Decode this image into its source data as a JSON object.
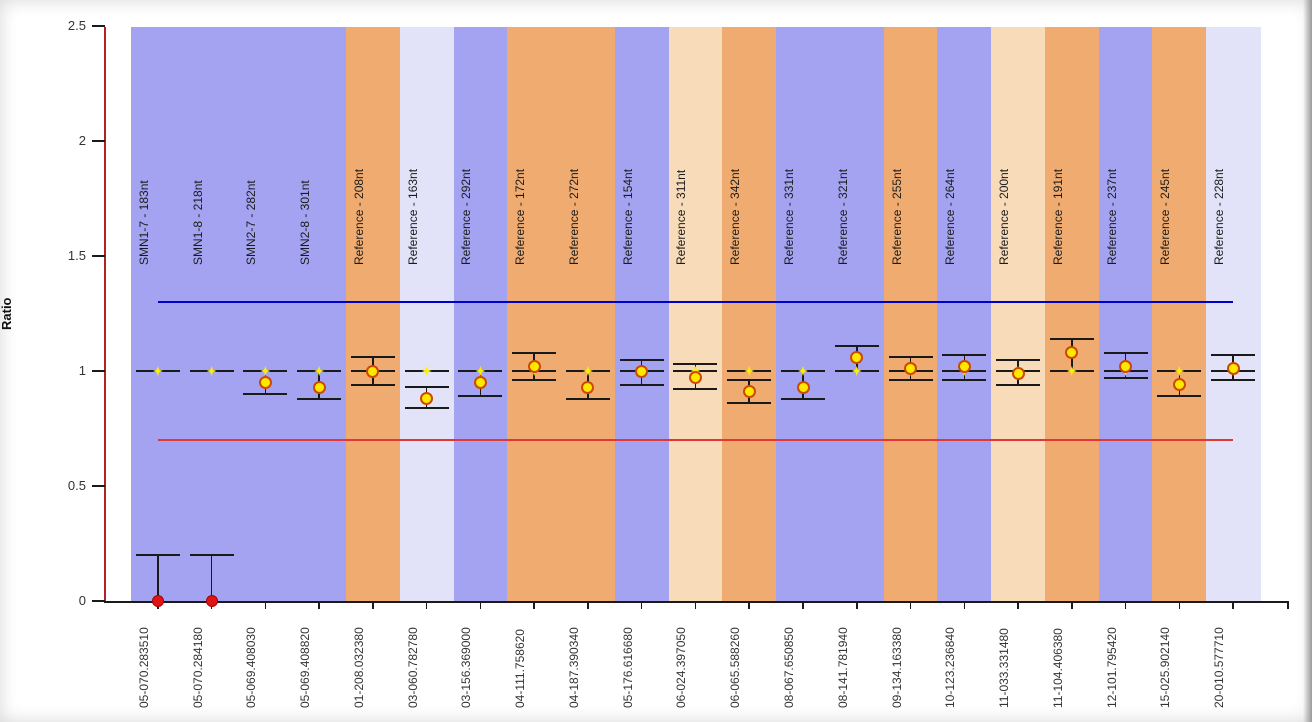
{
  "chart_data": {
    "type": "scatter",
    "title": "",
    "ylabel": "Ratio",
    "ylim": [
      0,
      2.5
    ],
    "yticks": [
      "0",
      "0.5",
      "1",
      "1.5",
      "2",
      "2.5"
    ],
    "grid": false,
    "legend": null,
    "expected_ratio": 1.0,
    "axis_colors": {
      "y_axis": "#b22222",
      "x_axis": "#1a1a1a",
      "tick_text": "#333333"
    },
    "reference_lines": [
      {
        "name": "upper-threshold",
        "value": 1.3,
        "color": "#0000cc"
      },
      {
        "name": "lower-threshold",
        "value": 0.7,
        "color": "#e03838"
      }
    ],
    "band_palette": {
      "purple": "#a3a3f2",
      "orange": "#f0ac70",
      "lavender": "#e2e3f8",
      "peach": "#f8dcba"
    },
    "marker_style": {
      "normal_fill": "#ffe800",
      "normal_stroke": "#cc4a00",
      "deleted_fill": "#dd1515",
      "deleted_stroke": "#b00000",
      "expected_star": "#ffee00",
      "error_bar_color": "#1a1a1a"
    },
    "probes": [
      {
        "x_label": "05-070.283510",
        "name": "SMN1-7 - 183nt",
        "band": "purple",
        "ratio": 0.0,
        "err_low": 0.0,
        "err_high": 0.2,
        "marker": "deleted"
      },
      {
        "x_label": "05-070.284180",
        "name": "SMN1-8 - 218nt",
        "band": "purple",
        "ratio": 0.0,
        "err_low": 0.0,
        "err_high": 0.2,
        "marker": "deleted"
      },
      {
        "x_label": "05-069.408030",
        "name": "SMN2-7 - 282nt",
        "band": "purple",
        "ratio": 0.95,
        "err_low": 0.9,
        "err_high": 1.0,
        "marker": "normal"
      },
      {
        "x_label": "05-069.408820",
        "name": "SMN2-8 - 301nt",
        "band": "purple",
        "ratio": 0.93,
        "err_low": 0.88,
        "err_high": 1.0,
        "marker": "normal"
      },
      {
        "x_label": "01-208.032380",
        "name": "Reference - 208nt",
        "band": "orange",
        "ratio": 1.0,
        "err_low": 0.94,
        "err_high": 1.06,
        "marker": "normal"
      },
      {
        "x_label": "03-060.782780",
        "name": "Reference - 163nt",
        "band": "lavender",
        "ratio": 0.88,
        "err_low": 0.84,
        "err_high": 0.93,
        "marker": "normal"
      },
      {
        "x_label": "03-156.369000",
        "name": "Reference - 292nt",
        "band": "purple",
        "ratio": 0.95,
        "err_low": 0.89,
        "err_high": 1.0,
        "marker": "normal"
      },
      {
        "x_label": "04-111.758620",
        "name": "Reference - 172nt",
        "band": "orange",
        "ratio": 1.02,
        "err_low": 0.96,
        "err_high": 1.08,
        "marker": "normal"
      },
      {
        "x_label": "04-187.390340",
        "name": "Reference - 272nt",
        "band": "orange",
        "ratio": 0.93,
        "err_low": 0.88,
        "err_high": 1.0,
        "marker": "normal"
      },
      {
        "x_label": "05-176.616680",
        "name": "Reference - 154nt",
        "band": "purple",
        "ratio": 1.0,
        "err_low": 0.94,
        "err_high": 1.05,
        "marker": "normal"
      },
      {
        "x_label": "06-024.397050",
        "name": "Reference - 311nt",
        "band": "peach",
        "ratio": 0.97,
        "err_low": 0.92,
        "err_high": 1.03,
        "marker": "normal"
      },
      {
        "x_label": "06-065.588260",
        "name": "Reference - 342nt",
        "band": "orange",
        "ratio": 0.91,
        "err_low": 0.86,
        "err_high": 0.96,
        "marker": "normal"
      },
      {
        "x_label": "08-067.650850",
        "name": "Reference - 331nt",
        "band": "purple",
        "ratio": 0.93,
        "err_low": 0.88,
        "err_high": 1.0,
        "marker": "normal"
      },
      {
        "x_label": "08-141.781940",
        "name": "Reference - 321nt",
        "band": "purple",
        "ratio": 1.06,
        "err_low": 1.0,
        "err_high": 1.11,
        "marker": "normal"
      },
      {
        "x_label": "09-134.163380",
        "name": "Reference - 255nt",
        "band": "orange",
        "ratio": 1.01,
        "err_low": 0.96,
        "err_high": 1.06,
        "marker": "normal"
      },
      {
        "x_label": "10-123.236840",
        "name": "Reference - 264nt",
        "band": "purple",
        "ratio": 1.02,
        "err_low": 0.96,
        "err_high": 1.07,
        "marker": "normal"
      },
      {
        "x_label": "11-033.331480",
        "name": "Reference - 200nt",
        "band": "peach",
        "ratio": 0.99,
        "err_low": 0.94,
        "err_high": 1.05,
        "marker": "normal"
      },
      {
        "x_label": "11-104.406380",
        "name": "Reference - 191nt",
        "band": "orange",
        "ratio": 1.08,
        "err_low": 1.0,
        "err_high": 1.14,
        "marker": "normal"
      },
      {
        "x_label": "12-101.795420",
        "name": "Reference - 237nt",
        "band": "purple",
        "ratio": 1.02,
        "err_low": 0.97,
        "err_high": 1.08,
        "marker": "normal"
      },
      {
        "x_label": "15-025.902140",
        "name": "Reference - 245nt",
        "band": "orange",
        "ratio": 0.94,
        "err_low": 0.89,
        "err_high": 1.0,
        "marker": "normal"
      },
      {
        "x_label": "20-010.577710",
        "name": "Reference - 228nt",
        "band": "lavender",
        "ratio": 1.01,
        "err_low": 0.96,
        "err_high": 1.07,
        "marker": "normal"
      }
    ]
  }
}
